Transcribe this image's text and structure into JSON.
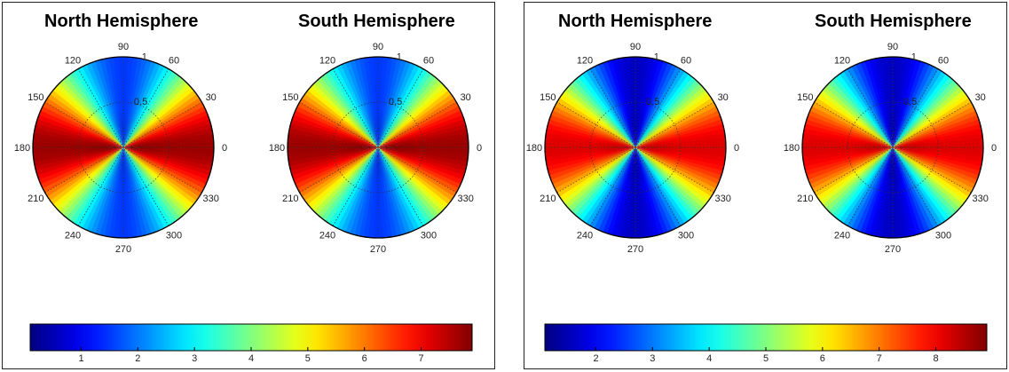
{
  "chart_data": [
    {
      "type": "heatmap",
      "colormap": "jet",
      "colorbar": {
        "ticks": [
          "1",
          "2",
          "3",
          "4",
          "5",
          "6",
          "7"
        ],
        "range": [
          0.1,
          7.9
        ]
      },
      "subplots": [
        {
          "title": "North Hemisphere",
          "projection": "polar",
          "angle_ticks": [
            "0",
            "30",
            "60",
            "90",
            "120",
            "150",
            "180",
            "210",
            "240",
            "270",
            "300",
            "330"
          ],
          "radial_ticks": [
            "0.5",
            "1"
          ],
          "rlim": [
            0,
            1
          ],
          "angle_range": [
            0,
            360
          ],
          "pattern": {
            "min_value": 1.5,
            "max_value": 7.7,
            "minimum_angles": [
              90,
              270
            ],
            "maximum_angles": [
              0,
              180
            ]
          }
        },
        {
          "title": "South Hemisphere",
          "projection": "polar",
          "angle_ticks": [
            "0",
            "30",
            "60",
            "90",
            "120",
            "150",
            "180",
            "210",
            "240",
            "270",
            "300",
            "330"
          ],
          "radial_ticks": [
            "0.5",
            "1"
          ],
          "rlim": [
            0,
            1
          ],
          "angle_range": [
            0,
            360
          ],
          "pattern": {
            "min_value": 1.5,
            "max_value": 7.7,
            "minimum_angles": [
              90,
              270
            ],
            "maximum_angles": [
              0,
              180
            ]
          }
        }
      ]
    },
    {
      "type": "heatmap",
      "colormap": "jet",
      "colorbar": {
        "ticks": [
          "2",
          "3",
          "4",
          "5",
          "6",
          "7",
          "8"
        ],
        "range": [
          1.1,
          8.9
        ]
      },
      "subplots": [
        {
          "title": "North Hemisphere",
          "projection": "polar",
          "angle_ticks": [
            "0",
            "30",
            "60",
            "90",
            "120",
            "150",
            "180",
            "210",
            "240",
            "270",
            "300",
            "330"
          ],
          "radial_ticks": [
            "0.5",
            "1"
          ],
          "rlim": [
            0,
            1
          ],
          "angle_range": [
            0,
            360
          ],
          "pattern": {
            "min_value": 1.6,
            "max_value": 8.2,
            "minimum_angles": [
              90,
              270
            ],
            "maximum_angles": [
              0,
              180
            ]
          }
        },
        {
          "title": "South Hemisphere",
          "projection": "polar",
          "angle_ticks": [
            "0",
            "30",
            "60",
            "90",
            "120",
            "150",
            "180",
            "210",
            "240",
            "270",
            "300",
            "330"
          ],
          "radial_ticks": [
            "0.5",
            "1"
          ],
          "rlim": [
            0,
            1
          ],
          "angle_range": [
            0,
            360
          ],
          "pattern": {
            "min_value": 1.6,
            "max_value": 8.2,
            "minimum_angles": [
              90,
              270
            ],
            "maximum_angles": [
              0,
              180
            ]
          }
        }
      ]
    }
  ]
}
